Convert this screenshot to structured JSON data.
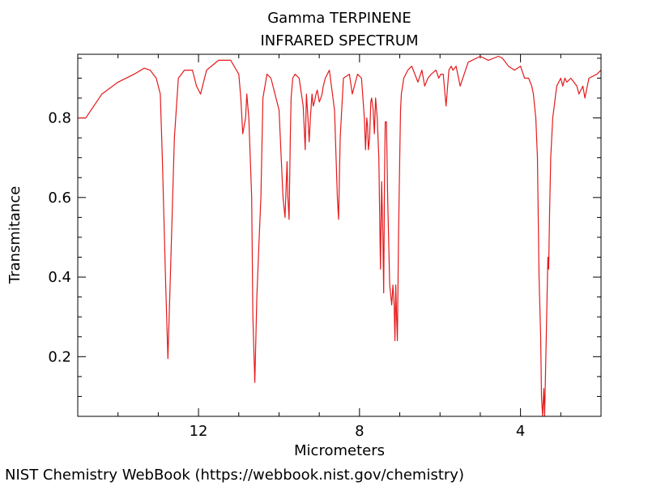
{
  "chart_data": {
    "type": "line",
    "title": "Gamma TERPINENE",
    "subtitle": "INFRARED SPECTRUM",
    "xlabel": "Micrometers",
    "ylabel": "Transmitance",
    "xlim": [
      15.0,
      2.0
    ],
    "ylim": [
      0.05,
      0.96
    ],
    "x_axis_reversed": true,
    "grid": false,
    "line_color": "#e41a1c",
    "xticks": [
      12,
      8,
      4
    ],
    "yticks": [
      0.2,
      0.4,
      0.6,
      0.8
    ],
    "ytick_labels": [
      "0.2",
      "0.4",
      "0.6",
      "0.8"
    ],
    "series": [
      {
        "x": [
          15.0,
          14.8,
          14.4,
          14.0,
          13.6,
          13.35,
          13.2,
          13.05,
          12.95,
          12.9,
          12.82,
          12.76,
          12.7,
          12.6,
          12.5,
          12.35,
          12.15,
          12.05,
          11.95,
          11.8,
          11.5,
          11.2,
          11.0,
          10.95,
          10.9,
          10.83,
          10.8,
          10.75,
          10.68,
          10.65,
          10.6,
          10.55,
          10.5,
          10.45,
          10.4,
          10.3,
          10.2,
          10.0,
          9.9,
          9.85,
          9.8,
          9.78,
          9.75,
          9.72,
          9.7,
          9.66,
          9.6,
          9.5,
          9.4,
          9.35,
          9.32,
          9.28,
          9.25,
          9.22,
          9.18,
          9.15,
          9.12,
          9.08,
          9.05,
          9.0,
          8.96,
          8.93,
          8.9,
          8.85,
          8.75,
          8.62,
          8.55,
          8.52,
          8.48,
          8.4,
          8.25,
          8.18,
          8.05,
          7.95,
          7.88,
          7.85,
          7.82,
          7.8,
          7.78,
          7.75,
          7.72,
          7.7,
          7.66,
          7.63,
          7.6,
          7.56,
          7.52,
          7.48,
          7.45,
          7.42,
          7.4,
          7.38,
          7.36,
          7.33,
          7.3,
          7.25,
          7.2,
          7.17,
          7.14,
          7.12,
          7.1,
          7.08,
          7.06,
          7.03,
          7.0,
          6.98,
          6.96,
          6.93,
          6.9,
          6.85,
          6.8,
          6.7,
          6.55,
          6.45,
          6.38,
          6.3,
          6.22,
          6.1,
          6.03,
          5.98,
          5.92,
          5.85,
          5.78,
          5.72,
          5.68,
          5.6,
          5.5,
          5.3,
          5.0,
          4.8,
          4.55,
          4.45,
          4.3,
          4.15,
          4.0,
          3.9,
          3.8,
          3.72,
          3.68,
          3.62,
          3.58,
          3.54,
          3.5,
          3.48,
          3.45,
          3.42,
          3.4,
          3.38,
          3.35,
          3.32,
          3.3,
          3.28,
          3.25,
          3.2,
          3.1,
          3.0,
          2.95,
          2.9,
          2.85,
          2.75,
          2.6,
          2.55,
          2.45,
          2.4,
          2.3,
          2.1,
          2.0
        ],
        "y": [
          0.8,
          0.8,
          0.86,
          0.89,
          0.91,
          0.925,
          0.92,
          0.9,
          0.86,
          0.7,
          0.4,
          0.195,
          0.4,
          0.75,
          0.9,
          0.92,
          0.92,
          0.88,
          0.86,
          0.92,
          0.945,
          0.945,
          0.91,
          0.85,
          0.76,
          0.8,
          0.86,
          0.8,
          0.6,
          0.3,
          0.135,
          0.35,
          0.48,
          0.6,
          0.85,
          0.91,
          0.9,
          0.82,
          0.6,
          0.55,
          0.69,
          0.6,
          0.545,
          0.75,
          0.85,
          0.9,
          0.91,
          0.9,
          0.83,
          0.72,
          0.86,
          0.8,
          0.74,
          0.8,
          0.86,
          0.83,
          0.84,
          0.86,
          0.87,
          0.84,
          0.85,
          0.86,
          0.88,
          0.9,
          0.92,
          0.82,
          0.6,
          0.545,
          0.75,
          0.9,
          0.91,
          0.86,
          0.91,
          0.9,
          0.8,
          0.72,
          0.8,
          0.78,
          0.72,
          0.75,
          0.84,
          0.85,
          0.82,
          0.76,
          0.85,
          0.8,
          0.7,
          0.42,
          0.64,
          0.5,
          0.36,
          0.65,
          0.79,
          0.79,
          0.6,
          0.38,
          0.33,
          0.38,
          0.33,
          0.24,
          0.38,
          0.3,
          0.24,
          0.5,
          0.7,
          0.82,
          0.86,
          0.88,
          0.9,
          0.91,
          0.92,
          0.93,
          0.89,
          0.92,
          0.88,
          0.9,
          0.91,
          0.92,
          0.9,
          0.91,
          0.91,
          0.83,
          0.92,
          0.93,
          0.92,
          0.93,
          0.88,
          0.94,
          0.955,
          0.945,
          0.955,
          0.95,
          0.93,
          0.92,
          0.93,
          0.9,
          0.9,
          0.88,
          0.86,
          0.8,
          0.7,
          0.4,
          0.25,
          0.1,
          0.05,
          0.12,
          0.05,
          0.15,
          0.3,
          0.45,
          0.42,
          0.55,
          0.7,
          0.8,
          0.88,
          0.9,
          0.88,
          0.9,
          0.89,
          0.9,
          0.88,
          0.86,
          0.88,
          0.85,
          0.9,
          0.91,
          0.92
        ]
      }
    ]
  },
  "footer": {
    "source": "NIST Chemistry WebBook (https://webbook.nist.gov/chemistry)"
  }
}
